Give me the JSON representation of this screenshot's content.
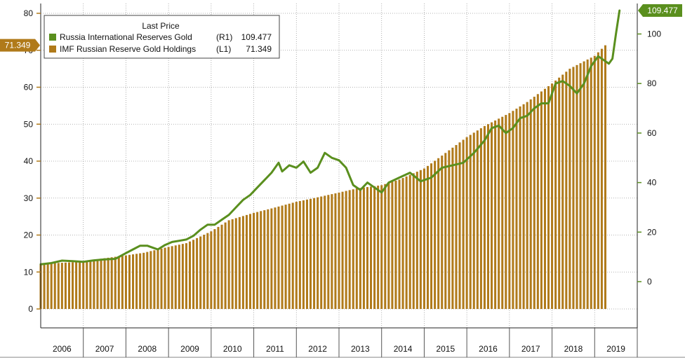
{
  "chart_data": {
    "type": "bar+line",
    "title": "",
    "legend": {
      "header": "Last Price",
      "placement": "top-left",
      "entries": [
        {
          "label": "Russia International Reserves Gold",
          "axis": "(R1)",
          "value": "109.477",
          "color": "#5a8f1e"
        },
        {
          "label": "IMF Russian Reserve Gold Holdings",
          "axis": "(L1)",
          "value": "71.349",
          "color": "#b07a1a"
        }
      ]
    },
    "badges": {
      "left": "71.349",
      "right": "109.477"
    },
    "x_axis": {
      "labels": [
        "2006",
        "2007",
        "2008",
        "2009",
        "2010",
        "2011",
        "2012",
        "2013",
        "2014",
        "2015",
        "2016",
        "2017",
        "2018",
        "2019"
      ],
      "range": [
        "2006-01",
        "2019-12"
      ]
    },
    "left_axis": {
      "ticks": [
        0,
        10,
        20,
        30,
        40,
        50,
        60,
        70,
        80
      ],
      "range": [
        -5,
        82
      ]
    },
    "right_axis": {
      "ticks": [
        0,
        20,
        40,
        60,
        80,
        100
      ],
      "range": [
        -11,
        111
      ]
    },
    "grid": "dotted",
    "series": [
      {
        "name": "IMF Russian Reserve Gold Holdings",
        "type": "bar",
        "axis": "left",
        "color": "#b07a1a",
        "anchors": [
          [
            "2006-01",
            12.2
          ],
          [
            "2007-01",
            12.8
          ],
          [
            "2007-06",
            13.6
          ],
          [
            "2008-01",
            14.5
          ],
          [
            "2008-06",
            15.2
          ],
          [
            "2009-01",
            16.8
          ],
          [
            "2009-06",
            17.8
          ],
          [
            "2010-01",
            21.0
          ],
          [
            "2010-06",
            24.0
          ],
          [
            "2011-01",
            26.0
          ],
          [
            "2011-06",
            27.2
          ],
          [
            "2012-01",
            29.0
          ],
          [
            "2012-06",
            30.0
          ],
          [
            "2013-01",
            31.5
          ],
          [
            "2013-06",
            32.6
          ],
          [
            "2014-01",
            33.5
          ],
          [
            "2014-06",
            35.0
          ],
          [
            "2015-01",
            38.0
          ],
          [
            "2015-06",
            41.5
          ],
          [
            "2016-01",
            46.5
          ],
          [
            "2016-06",
            49.5
          ],
          [
            "2017-01",
            53.0
          ],
          [
            "2017-06",
            56.0
          ],
          [
            "2018-01",
            61.0
          ],
          [
            "2018-06",
            65.0
          ],
          [
            "2019-01",
            68.5
          ],
          [
            "2019-04",
            71.349
          ]
        ]
      },
      {
        "name": "Russia International Reserves Gold",
        "type": "line",
        "axis": "right",
        "color": "#5a8f1e",
        "points": [
          [
            "2006-01",
            7.0
          ],
          [
            "2006-04",
            7.5
          ],
          [
            "2006-07",
            8.5
          ],
          [
            "2006-10",
            8.3
          ],
          [
            "2007-01",
            8.0
          ],
          [
            "2007-04",
            8.6
          ],
          [
            "2007-07",
            9.0
          ],
          [
            "2007-10",
            9.2
          ],
          [
            "2008-01",
            11.5
          ],
          [
            "2008-03",
            13.0
          ],
          [
            "2008-05",
            14.5
          ],
          [
            "2008-07",
            14.5
          ],
          [
            "2008-09",
            13.5
          ],
          [
            "2008-10",
            13.0
          ],
          [
            "2008-12",
            14.8
          ],
          [
            "2009-02",
            16.0
          ],
          [
            "2009-04",
            16.5
          ],
          [
            "2009-06",
            17.0
          ],
          [
            "2009-08",
            18.5
          ],
          [
            "2009-10",
            21.0
          ],
          [
            "2009-12",
            23.0
          ],
          [
            "2010-02",
            23.0
          ],
          [
            "2010-04",
            25.0
          ],
          [
            "2010-06",
            27.0
          ],
          [
            "2010-08",
            30.0
          ],
          [
            "2010-10",
            33.0
          ],
          [
            "2010-12",
            35.0
          ],
          [
            "2011-02",
            38.0
          ],
          [
            "2011-04",
            41.0
          ],
          [
            "2011-06",
            44.0
          ],
          [
            "2011-08",
            48.0
          ],
          [
            "2011-09",
            44.5
          ],
          [
            "2011-11",
            47.0
          ],
          [
            "2012-01",
            46.0
          ],
          [
            "2012-03",
            48.5
          ],
          [
            "2012-05",
            44.0
          ],
          [
            "2012-07",
            46.0
          ],
          [
            "2012-09",
            52.0
          ],
          [
            "2012-11",
            50.0
          ],
          [
            "2013-01",
            49.0
          ],
          [
            "2013-03",
            46.0
          ],
          [
            "2013-05",
            39.0
          ],
          [
            "2013-07",
            37.0
          ],
          [
            "2013-09",
            40.0
          ],
          [
            "2013-11",
            38.0
          ],
          [
            "2014-01",
            36.0
          ],
          [
            "2014-03",
            40.0
          ],
          [
            "2014-06",
            42.0
          ],
          [
            "2014-09",
            44.0
          ],
          [
            "2014-12",
            40.5
          ],
          [
            "2015-03",
            42.0
          ],
          [
            "2015-06",
            46.0
          ],
          [
            "2015-09",
            47.0
          ],
          [
            "2015-12",
            48.0
          ],
          [
            "2016-03",
            52.0
          ],
          [
            "2016-06",
            57.0
          ],
          [
            "2016-08",
            62.0
          ],
          [
            "2016-10",
            63.0
          ],
          [
            "2016-12",
            60.0
          ],
          [
            "2017-02",
            62.0
          ],
          [
            "2017-04",
            66.0
          ],
          [
            "2017-06",
            67.0
          ],
          [
            "2017-08",
            70.0
          ],
          [
            "2017-10",
            72.0
          ],
          [
            "2017-12",
            72.0
          ],
          [
            "2018-02",
            80.0
          ],
          [
            "2018-04",
            81.0
          ],
          [
            "2018-06",
            79.0
          ],
          [
            "2018-08",
            76.0
          ],
          [
            "2018-10",
            80.0
          ],
          [
            "2018-12",
            87.0
          ],
          [
            "2019-02",
            91.0
          ],
          [
            "2019-03",
            90.0
          ],
          [
            "2019-05",
            88.0
          ],
          [
            "2019-06",
            90.0
          ],
          [
            "2019-07",
            100.0
          ],
          [
            "2019-08",
            109.477
          ]
        ]
      }
    ]
  }
}
